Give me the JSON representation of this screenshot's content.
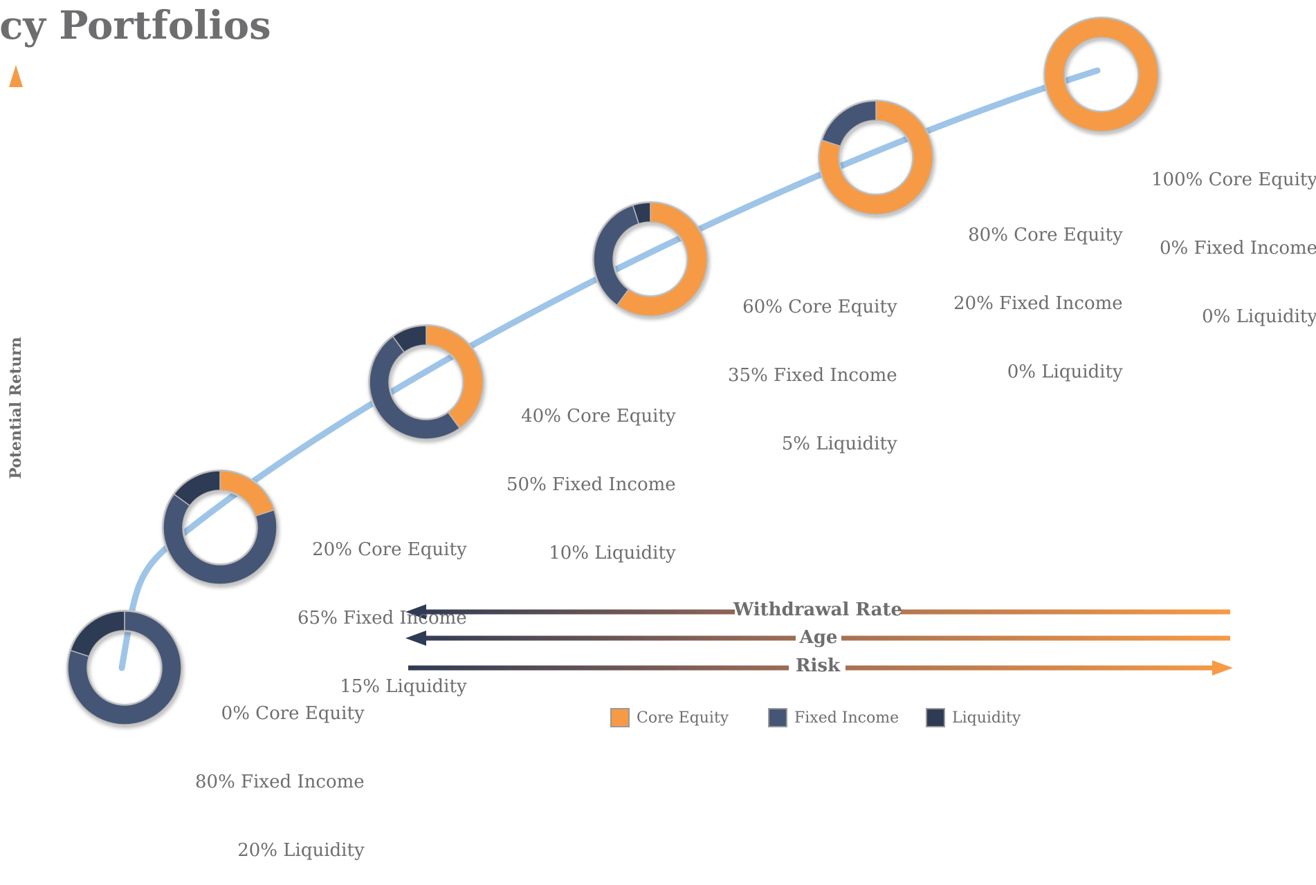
{
  "title": "icy Portfolios",
  "y_axis_label": "Potential Return",
  "colors": {
    "core_equity": "#f79a45",
    "fixed_income": "#455576",
    "liquidity": "#2f3b54",
    "curve": "#9ec4e8",
    "arrow_dark": "#2f3b54",
    "arrow_light": "#f79a45"
  },
  "portfolios": [
    {
      "core_equity": 0,
      "fixed_income": 80,
      "liquidity": 20,
      "lines": [
        "0% Core Equity",
        "80% Fixed Income",
        "20% Liquidity"
      ]
    },
    {
      "core_equity": 20,
      "fixed_income": 65,
      "liquidity": 15,
      "lines": [
        "20% Core Equity",
        "65% Fixed Income",
        "15% Liquidity"
      ]
    },
    {
      "core_equity": 40,
      "fixed_income": 50,
      "liquidity": 10,
      "lines": [
        "40% Core Equity",
        "50% Fixed Income",
        "10% Liquidity"
      ]
    },
    {
      "core_equity": 60,
      "fixed_income": 35,
      "liquidity": 5,
      "lines": [
        "60% Core Equity",
        "35% Fixed Income",
        "5% Liquidity"
      ]
    },
    {
      "core_equity": 80,
      "fixed_income": 20,
      "liquidity": 0,
      "lines": [
        "80% Core Equity",
        "20% Fixed Income",
        "0% Liquidity"
      ]
    },
    {
      "core_equity": 100,
      "fixed_income": 0,
      "liquidity": 0,
      "lines": [
        "100% Core Equity",
        "0% Fixed Income",
        "0% Liquidity"
      ]
    }
  ],
  "arrows": {
    "withdrawal_rate": "Withdrawal Rate",
    "age": "Age",
    "risk": "Risk"
  },
  "legend": [
    {
      "label": "Core Equity",
      "color": "#f79a45"
    },
    {
      "label": "Fixed Income",
      "color": "#455576"
    },
    {
      "label": "Liquidity",
      "color": "#2f3b54"
    }
  ]
}
